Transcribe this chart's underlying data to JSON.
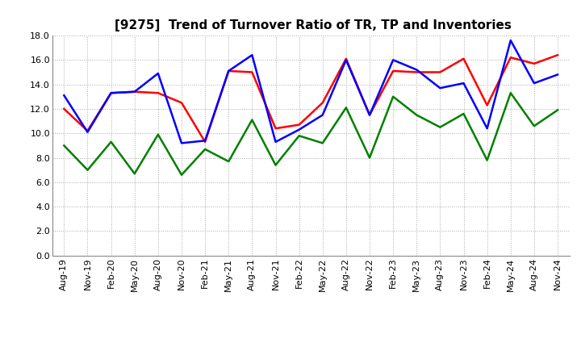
{
  "title": "[9275]  Trend of Turnover Ratio of TR, TP and Inventories",
  "x_labels": [
    "Aug-19",
    "Nov-19",
    "Feb-20",
    "May-20",
    "Aug-20",
    "Nov-20",
    "Feb-21",
    "May-21",
    "Aug-21",
    "Nov-21",
    "Feb-22",
    "May-22",
    "Aug-22",
    "Nov-22",
    "Feb-23",
    "May-23",
    "Aug-23",
    "Nov-23",
    "Feb-24",
    "May-24",
    "Aug-24",
    "Nov-24"
  ],
  "trade_receivables": [
    12.0,
    10.2,
    13.3,
    13.4,
    13.3,
    12.5,
    9.3,
    15.1,
    15.0,
    10.4,
    10.7,
    12.5,
    16.1,
    11.5,
    15.1,
    15.0,
    15.0,
    16.1,
    12.3,
    16.2,
    15.7,
    16.4
  ],
  "trade_payables": [
    13.1,
    10.1,
    13.3,
    13.4,
    14.9,
    9.2,
    9.4,
    15.1,
    16.4,
    9.3,
    10.3,
    11.5,
    16.0,
    11.5,
    16.0,
    15.2,
    13.7,
    14.1,
    10.4,
    17.6,
    14.1,
    14.8
  ],
  "inventories": [
    9.0,
    7.0,
    9.3,
    6.7,
    9.9,
    6.6,
    8.7,
    7.7,
    11.1,
    7.4,
    9.8,
    9.2,
    12.1,
    8.0,
    13.0,
    11.5,
    10.5,
    11.6,
    7.8,
    13.3,
    10.6,
    11.9
  ],
  "tr_color": "#FF0000",
  "tp_color": "#0000FF",
  "inv_color": "#008000",
  "ylim": [
    0.0,
    18.0
  ],
  "yticks": [
    0.0,
    2.0,
    4.0,
    6.0,
    8.0,
    10.0,
    12.0,
    14.0,
    16.0,
    18.0
  ],
  "bg_color": "#FFFFFF",
  "grid_color": "#AAAAAA",
  "linewidth": 1.8,
  "title_fontsize": 11,
  "tick_fontsize": 8,
  "legend_fontsize": 9
}
